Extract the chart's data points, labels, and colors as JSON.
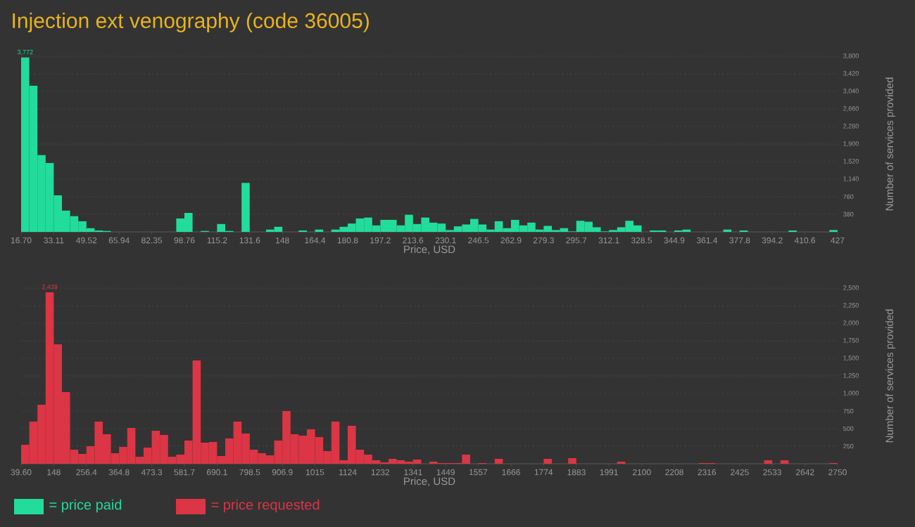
{
  "chart_data": [
    {
      "type": "histogram",
      "title": "Injection ext venography (code 36005)",
      "xlabel": "Price, USD",
      "ylabel": "Number of services provided",
      "bins": [
        16.7,
        20.8,
        24.91,
        29.01,
        33.11,
        37.22,
        41.32,
        45.42,
        49.52,
        53.63,
        57.73,
        61.83,
        65.94,
        70.04,
        74.14,
        78.25,
        82.35,
        86.45,
        90.55,
        94.66,
        98.76,
        102.86,
        106.97,
        111.07,
        115.17,
        119.28,
        123.38,
        127.48,
        131.58,
        135.69,
        139.79,
        143.89,
        148,
        152.1,
        156.2,
        160.31,
        164.41,
        168.51,
        172.61,
        176.72,
        180.82,
        184.92,
        189.03,
        193.13,
        197.23,
        201.34,
        205.44,
        209.54,
        213.64,
        217.75,
        221.85,
        225.95,
        230.06,
        234.16,
        238.26,
        242.37,
        246.47,
        250.57,
        254.67,
        258.78,
        262.88,
        266.98,
        271.09,
        275.19,
        279.29,
        283.4,
        287.5,
        291.6,
        295.7,
        299.81,
        303.91,
        308.01,
        312.12,
        316.22,
        320.32,
        324.43,
        328.53,
        332.63,
        336.73,
        340.84,
        344.94,
        349.04,
        353.15,
        357.25,
        361.35,
        365.46,
        369.56,
        373.66,
        377.76,
        381.87,
        385.97,
        390.07,
        394.18,
        398.28,
        402.38,
        406.49,
        410.59,
        414.69,
        418.79,
        422.9,
        427
      ],
      "series": [
        {
          "name": "= price paid",
          "color": "#22dc9c",
          "values": [
            3772,
            3160,
            1660,
            1490,
            790,
            460,
            340,
            230,
            80,
            30,
            20,
            0,
            0,
            0,
            0,
            0,
            0,
            0,
            0,
            290,
            410,
            0,
            20,
            0,
            170,
            20,
            0,
            1060,
            0,
            0,
            50,
            110,
            0,
            0,
            30,
            0,
            50,
            0,
            50,
            110,
            180,
            290,
            310,
            140,
            260,
            260,
            140,
            370,
            170,
            310,
            200,
            180,
            40,
            120,
            160,
            280,
            160,
            50,
            230,
            80,
            260,
            140,
            200,
            50,
            130,
            40,
            80,
            10,
            240,
            220,
            100,
            10,
            40,
            100,
            240,
            140,
            0,
            30,
            30,
            0,
            30,
            50,
            0,
            0,
            0,
            0,
            50,
            0,
            30,
            0,
            0,
            0,
            0,
            0,
            30,
            0,
            0,
            0,
            0,
            40
          ]
        }
      ],
      "xlim": [
        16.7,
        427
      ],
      "xticks": [
        {
          "value": 16.7,
          "label": "16.70"
        },
        33.11,
        49.52,
        65.94,
        82.35,
        98.76,
        115.2,
        131.6,
        148,
        164.4,
        180.8,
        197.2,
        213.6,
        230.1,
        246.5,
        262.9,
        279.3,
        295.7,
        312.1,
        328.5,
        344.9,
        361.4,
        377.8,
        394.2,
        410.6,
        427
      ],
      "ylim": [
        0,
        3800
      ],
      "yticks": [
        380,
        760,
        {
          "value": 1140,
          "label": "1,140"
        },
        {
          "value": 1520,
          "label": "1,520"
        },
        {
          "value": 1900,
          "label": "1,900"
        },
        {
          "value": 2280,
          "label": "2,280"
        },
        {
          "value": 2660,
          "label": "2,660"
        },
        {
          "value": 3040,
          "label": "3,040"
        },
        {
          "value": 3420,
          "label": "3,420"
        },
        {
          "value": 3800,
          "label": "3,800"
        }
      ],
      "annotations": [
        {
          "text": "3,772",
          "x": 18.75,
          "y": 3772
        }
      ],
      "grid": "y",
      "legend": "bottom"
    },
    {
      "type": "histogram",
      "xlabel": "Price, USD",
      "ylabel": "Number of services provided",
      "bins": [
        39.6,
        66.7,
        93.81,
        120.91,
        148.02,
        175.12,
        202.22,
        229.33,
        256.43,
        283.54,
        310.64,
        337.74,
        364.85,
        391.95,
        419.06,
        446.16,
        473.26,
        500.37,
        527.47,
        554.58,
        581.68,
        608.78,
        635.89,
        662.99,
        690.1,
        717.2,
        744.3,
        771.41,
        798.51,
        825.62,
        852.72,
        879.82,
        906.93,
        934.03,
        961.14,
        988.24,
        1015.34,
        1042.45,
        1069.55,
        1096.66,
        1123.76,
        1150.86,
        1177.97,
        1205.07,
        1232.18,
        1259.28,
        1286.38,
        1313.49,
        1340.59,
        1367.7,
        1394.8,
        1421.9,
        1449.01,
        1476.11,
        1503.22,
        1530.32,
        1557.42,
        1584.53,
        1611.63,
        1638.74,
        1665.84,
        1692.94,
        1720.05,
        1747.15,
        1774.26,
        1801.36,
        1828.46,
        1855.57,
        1882.67,
        1909.78,
        1936.88,
        1963.98,
        1991.09,
        2018.19,
        2045.3,
        2072.4,
        2099.5,
        2126.61,
        2153.71,
        2180.82,
        2207.92,
        2235.02,
        2262.13,
        2289.23,
        2316.34,
        2343.44,
        2370.54,
        2397.65,
        2424.75,
        2451.86,
        2478.96,
        2506.06,
        2533.17,
        2560.27,
        2587.38,
        2614.48,
        2641.58,
        2668.69,
        2695.79,
        2722.9,
        2750
      ],
      "series": [
        {
          "name": "= price requested",
          "color": "#dc3545",
          "values": [
            270,
            600,
            840,
            2439,
            1700,
            1020,
            200,
            140,
            250,
            600,
            420,
            150,
            240,
            510,
            100,
            230,
            470,
            410,
            100,
            130,
            330,
            1470,
            300,
            310,
            110,
            360,
            600,
            430,
            200,
            150,
            120,
            330,
            750,
            420,
            400,
            490,
            380,
            180,
            600,
            50,
            540,
            200,
            130,
            50,
            20,
            70,
            50,
            30,
            60,
            0,
            30,
            10,
            10,
            10,
            130,
            0,
            10,
            0,
            70,
            0,
            0,
            0,
            0,
            0,
            70,
            0,
            0,
            80,
            0,
            0,
            0,
            0,
            0,
            30,
            0,
            0,
            0,
            0,
            0,
            0,
            0,
            0,
            0,
            10,
            10,
            0,
            0,
            0,
            0,
            0,
            0,
            50,
            0,
            50,
            0,
            0,
            0,
            0,
            0,
            10
          ]
        }
      ],
      "xlim": [
        39.6,
        2750
      ],
      "xticks": [
        {
          "value": 39.6,
          "label": "39.60"
        },
        148,
        256.4,
        364.8,
        473.3,
        581.7,
        690.1,
        798.5,
        906.9,
        1015,
        1124,
        1232,
        1341,
        1449,
        1557,
        1666,
        1774,
        1883,
        1991,
        2100,
        2208,
        2316,
        2425,
        2533,
        2642,
        2750
      ],
      "ylim": [
        0,
        2500
      ],
      "yticks": [
        250,
        500,
        750,
        {
          "value": 1000,
          "label": "1,000"
        },
        {
          "value": 1250,
          "label": "1,250"
        },
        {
          "value": 1500,
          "label": "1,500"
        },
        {
          "value": 1750,
          "label": "1,750"
        },
        {
          "value": 2000,
          "label": "2,000"
        },
        {
          "value": 2250,
          "label": "2,250"
        },
        {
          "value": 2500,
          "label": "2,500"
        }
      ],
      "annotations": [
        {
          "text": "2,439",
          "x": 134.5,
          "y": 2439
        }
      ],
      "grid": "y",
      "legend": "bottom"
    }
  ]
}
